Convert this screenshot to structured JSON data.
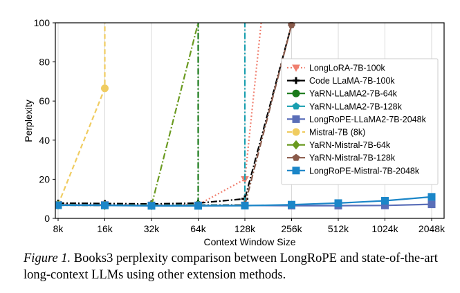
{
  "chart_data": {
    "type": "line",
    "xlabel": "Context Window Size",
    "ylabel": "Perplexity",
    "ylim": [
      0,
      100
    ],
    "yticks": [
      0,
      20,
      40,
      60,
      80,
      100
    ],
    "x_scale": "log2",
    "categories": [
      "8k",
      "16k",
      "32k",
      "64k",
      "128k",
      "256k",
      "512k",
      "1024k",
      "2048k"
    ],
    "series": [
      {
        "name": "LongLoRA-7B-100k",
        "color": "#f08070",
        "dash": "dotted",
        "marker": "triangle-down",
        "points": [
          [
            0,
            7.2
          ],
          [
            1,
            7.0
          ],
          [
            2,
            6.8
          ],
          [
            3,
            7.0
          ],
          [
            4,
            20
          ],
          [
            4.35,
            100
          ]
        ],
        "marked": [
          4
        ]
      },
      {
        "name": "Code LLaMA-7B-100k",
        "color": "#000000",
        "dash": "dashdot",
        "marker": "plus",
        "points": [
          [
            0,
            7.8
          ],
          [
            1,
            7.6
          ],
          [
            2,
            7.4
          ],
          [
            3,
            7.8
          ],
          [
            4,
            10
          ],
          [
            5,
            99
          ]
        ],
        "marked": [
          0,
          1,
          2,
          3,
          4,
          5
        ]
      },
      {
        "name": "YaRN-LLaMA2-7B-64k",
        "color": "#1a7a1a",
        "dash": "dashdot",
        "marker": "circle",
        "points": [
          [
            0,
            7.0
          ],
          [
            1,
            6.9
          ],
          [
            2,
            6.8
          ],
          [
            3,
            7.0
          ],
          [
            3,
            100
          ]
        ],
        "marked": [
          0,
          1,
          2,
          3
        ]
      },
      {
        "name": "YaRN-LLaMA2-7B-128k",
        "color": "#1a9fb0",
        "dash": "dashdot",
        "marker": "pentagon",
        "points": [
          [
            0,
            7.0
          ],
          [
            1,
            6.9
          ],
          [
            2,
            6.8
          ],
          [
            3,
            6.9
          ],
          [
            4,
            6.9
          ],
          [
            4,
            100
          ]
        ],
        "marked": [
          0,
          1,
          2,
          3,
          4
        ]
      },
      {
        "name": "LongRoPE-LLaMA2-7B-2048k",
        "color": "#5a6eb8",
        "dash": "solid",
        "marker": "square",
        "points": [
          [
            0,
            6.9
          ],
          [
            1,
            6.8
          ],
          [
            2,
            6.6
          ],
          [
            3,
            6.6
          ],
          [
            4,
            6.6
          ],
          [
            5,
            6.5
          ],
          [
            6,
            6.5
          ],
          [
            7,
            6.6
          ],
          [
            8,
            7.2
          ]
        ],
        "marked": [
          0,
          1,
          2,
          3,
          4,
          5,
          6,
          7,
          8
        ]
      },
      {
        "name": "Mistral-7B (8k)",
        "color": "#f0cc60",
        "dash": "dashed",
        "marker": "circle",
        "points": [
          [
            0,
            7.0
          ],
          [
            1,
            66.5
          ],
          [
            1,
            100
          ]
        ],
        "marked": [
          0,
          1
        ]
      },
      {
        "name": "YaRN-Mistral-7B-64k",
        "color": "#6a9a20",
        "dash": "dashdot",
        "marker": "diamond",
        "points": [
          [
            0,
            6.8
          ],
          [
            1,
            6.6
          ],
          [
            2,
            6.6
          ],
          [
            3,
            100
          ]
        ],
        "marked": [
          0,
          1,
          2
        ]
      },
      {
        "name": "YaRN-Mistral-7B-128k",
        "color": "#8a5a4a",
        "dash": "dashdot",
        "marker": "pentagon",
        "points": [
          [
            0,
            6.7
          ],
          [
            1,
            6.6
          ],
          [
            2,
            6.6
          ],
          [
            3,
            6.6
          ],
          [
            4,
            6.8
          ],
          [
            5,
            99
          ]
        ],
        "marked": [
          0,
          1,
          2,
          3,
          4,
          5
        ]
      },
      {
        "name": "LongRoPE-Mistral-7B-2048k",
        "color": "#1b86c8",
        "dash": "solid",
        "marker": "square",
        "points": [
          [
            0,
            6.7
          ],
          [
            1,
            6.6
          ],
          [
            2,
            6.4
          ],
          [
            3,
            6.4
          ],
          [
            4,
            6.5
          ],
          [
            5,
            7.0
          ],
          [
            6,
            7.8
          ],
          [
            7,
            9.0
          ],
          [
            8,
            11.0
          ]
        ],
        "marked": [
          0,
          1,
          2,
          3,
          4,
          5,
          6,
          7,
          8
        ]
      }
    ],
    "legend_position": "right"
  },
  "caption": {
    "figure_label": "Figure 1.",
    "text": " Books3 perplexity comparison between LongRoPE and state-of-the-art long-context LLMs using other extension methods."
  }
}
